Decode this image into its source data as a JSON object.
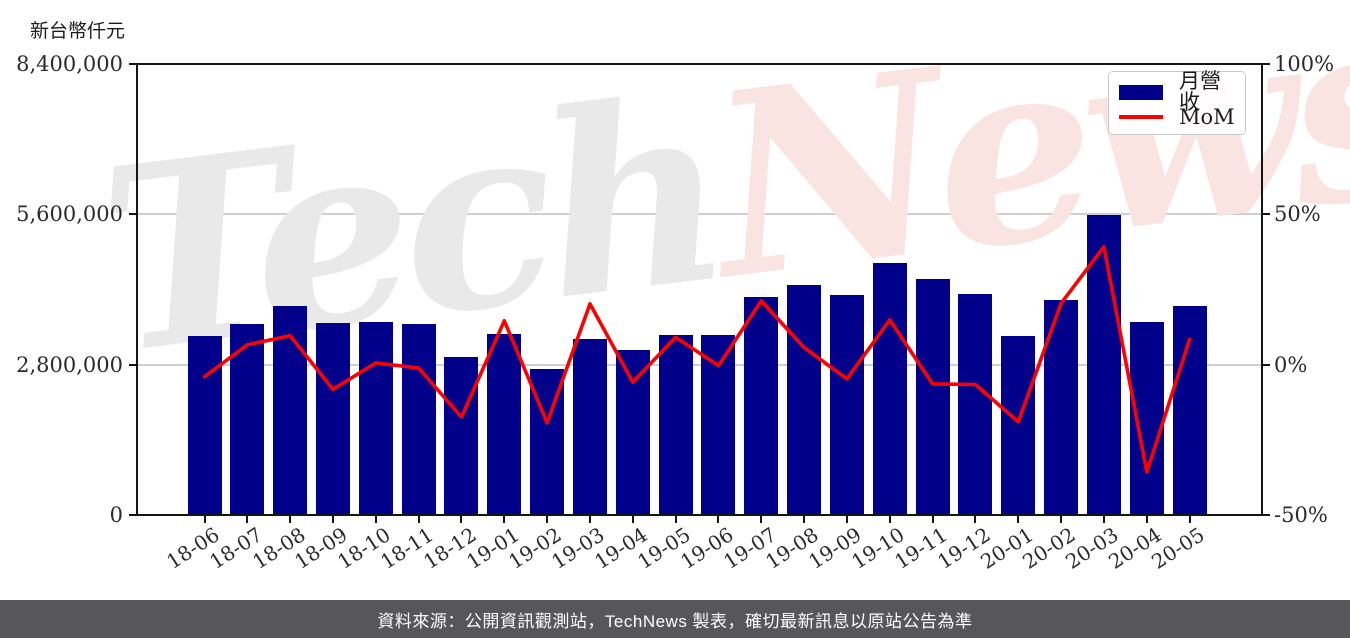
{
  "left_axis": {
    "unit_label": "新台幣仟元",
    "tick_labels": [
      "0",
      "2,800,000",
      "5,600,000",
      "8,400,000"
    ],
    "tick_values": [
      0,
      2800000,
      5600000,
      8400000
    ]
  },
  "right_axis": {
    "tick_labels": [
      "-50%",
      "0%",
      "50%",
      "100%"
    ],
    "tick_values": [
      -50,
      0,
      50,
      100
    ]
  },
  "legend": {
    "bar_label": "月營收",
    "line_label": "MoM"
  },
  "watermark": {
    "part1": "Tech",
    "part2": "News",
    "gray": "#e9e9e9",
    "pink": "#f9e4e2"
  },
  "footer": {
    "text": "資料來源：公開資訊觀測站，TechNews 製表，確切最新訊息以原站公告為準"
  },
  "colors": {
    "bar": "#00008B",
    "line": "#FF0000",
    "grid": "#cfcfcf",
    "axis": "#151515",
    "footer_bg": "#57575b",
    "footer_text": "#ffffff"
  },
  "chart_data": {
    "type": "bar",
    "combo": "bar+line",
    "title": "",
    "xlabel": "",
    "ylabel_left": "新台幣仟元",
    "ylabel_right": "%",
    "grid": "horizontal",
    "legend_position": "upper right",
    "left_ylim": [
      0,
      8400000
    ],
    "right_ylim": [
      -50,
      100
    ],
    "categories": [
      "18-06",
      "18-07",
      "18-08",
      "18-09",
      "18-10",
      "18-11",
      "18-12",
      "19-01",
      "19-02",
      "19-03",
      "19-04",
      "19-05",
      "19-06",
      "19-07",
      "19-08",
      "19-09",
      "19-10",
      "19-11",
      "19-12",
      "20-01",
      "20-02",
      "20-03",
      "20-04",
      "20-05"
    ],
    "series": [
      {
        "name": "月營收",
        "type": "bar",
        "axis": "left",
        "color": "#00008B",
        "values": [
          3340000,
          3560000,
          3900000,
          3580000,
          3600000,
          3560000,
          2940000,
          3370000,
          2720000,
          3270000,
          3080000,
          3360000,
          3350000,
          4060000,
          4290000,
          4090000,
          4700000,
          4400000,
          4110000,
          3330000,
          4010000,
          5580000,
          3590000,
          3890000
        ]
      },
      {
        "name": "MoM",
        "type": "line",
        "axis": "right",
        "unit": "%",
        "color": "#FF0000",
        "values": [
          -4.0,
          6.6,
          9.6,
          -8.2,
          0.6,
          -1.1,
          -17.4,
          14.6,
          -19.3,
          20.2,
          -5.8,
          9.1,
          -0.3,
          21.2,
          5.7,
          -4.7,
          14.9,
          -6.4,
          -6.6,
          -19.0,
          20.4,
          39.2,
          -35.7,
          8.4
        ]
      }
    ]
  }
}
